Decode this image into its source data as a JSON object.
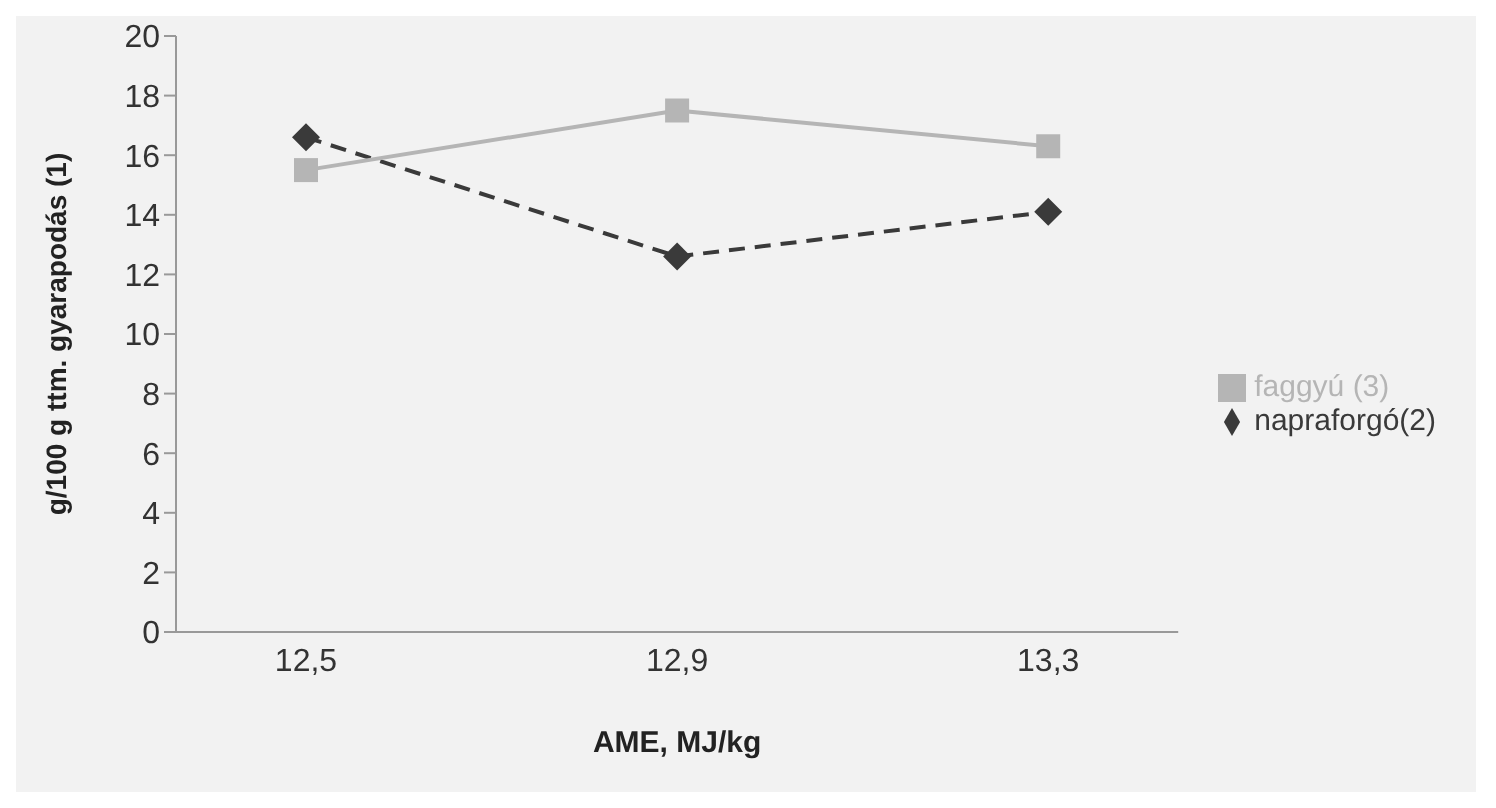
{
  "chart_data": {
    "type": "line",
    "xlabel": "AME, MJ/kg",
    "ylabel": "g/100 g ttm. gyarapodás (1)",
    "categories": [
      "12,5",
      "12,9",
      "13,3"
    ],
    "series": [
      {
        "name": "napraforgó(2)",
        "color": "#3a3a3a",
        "values": [
          16.6,
          12.6,
          14.1
        ],
        "marker": "diamond",
        "line_style": "dashed"
      },
      {
        "name": "faggyú (3)",
        "color": "#b5b5b5",
        "values": [
          15.5,
          17.5,
          16.3
        ],
        "marker": "square",
        "line_style": "solid"
      }
    ],
    "ylim": [
      0,
      20
    ],
    "yticks": [
      0,
      2,
      4,
      6,
      8,
      10,
      12,
      14,
      16,
      18,
      20
    ],
    "grid": false,
    "legend": "right"
  }
}
